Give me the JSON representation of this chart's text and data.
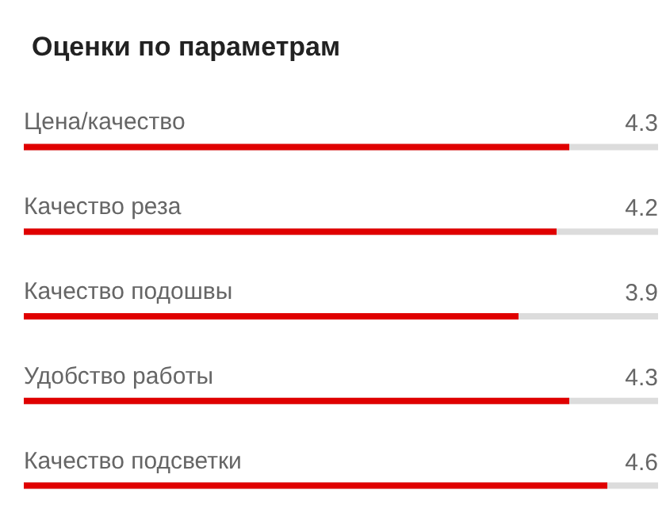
{
  "chart_data": {
    "type": "bar",
    "orientation": "horizontal",
    "title": "Оценки по параметрам",
    "categories": [
      "Цена/качество",
      "Качество реза",
      "Качество подошвы",
      "Удобство работы",
      "Качество подсветки"
    ],
    "values": [
      4.3,
      4.2,
      3.9,
      4.3,
      4.6
    ],
    "color": "#e00000",
    "xlim": [
      0,
      5
    ],
    "data_labels": true,
    "tick_labels": "y"
  }
}
